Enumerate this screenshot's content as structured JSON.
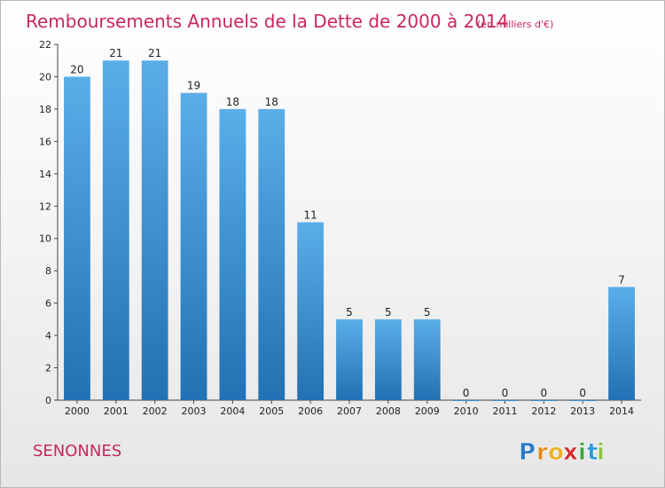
{
  "chart_data": {
    "type": "bar",
    "title": "Remboursements Annuels de la Dette de 2000 à 2014",
    "subtitle": "(en milliers d'€)",
    "xlabel": "",
    "ylabel": "",
    "categories": [
      "2000",
      "2001",
      "2002",
      "2003",
      "2004",
      "2005",
      "2006",
      "2007",
      "2008",
      "2009",
      "2010",
      "2011",
      "2012",
      "2013",
      "2014"
    ],
    "values": [
      20,
      21,
      21,
      19,
      18,
      18,
      11,
      5,
      5,
      5,
      0,
      0,
      0,
      0,
      7
    ],
    "value_labels": [
      "20",
      "21",
      "21",
      "19",
      "18",
      "18",
      "11",
      "5",
      "5",
      "5",
      "0",
      "0",
      "0",
      "0",
      "7"
    ],
    "ylim": [
      0,
      22
    ],
    "yticks": [
      0,
      2,
      4,
      6,
      8,
      10,
      12,
      14,
      16,
      18,
      20,
      22
    ],
    "grid": false,
    "legend": "none",
    "bar_color_top": "#5aaee8",
    "bar_color_bottom": "#2271b3"
  },
  "commune": "SENONNES",
  "logo": {
    "letters": [
      "P",
      "r",
      "o",
      "x",
      "i",
      "t",
      "i"
    ],
    "colors": [
      "#2b7bc4",
      "#e08a1c",
      "#e8b020",
      "#d42a2a",
      "#3aa63a",
      "#2b9bd8",
      "#8cc43a"
    ]
  },
  "colors": {
    "title": "#c8285a",
    "axis": "#444444"
  }
}
